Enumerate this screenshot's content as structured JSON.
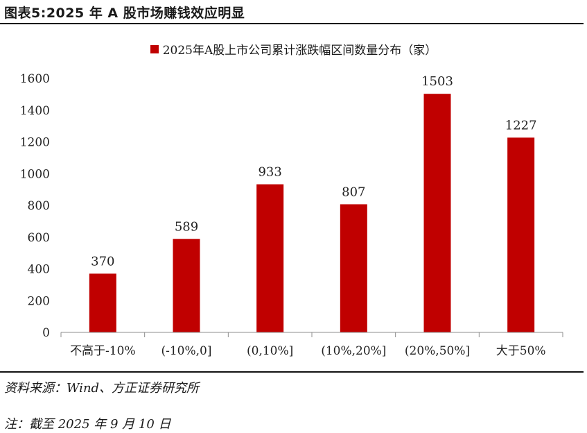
{
  "figure_title": "图表5:2025 年 A 股市场赚钱效应明显",
  "source": "资料来源：Wind、方正证券研究所",
  "note": "注：截至 2025 年 9 月 10 日",
  "chart_data": {
    "type": "bar",
    "legend_position": "top-center",
    "grid": false,
    "series": [
      {
        "name": "2025年A股上市公司累计涨跌幅区间数量分布（家）",
        "color": "#c00000",
        "values": [
          370,
          589,
          933,
          807,
          1503,
          1227
        ]
      }
    ],
    "categories": [
      "不高于-10%",
      "(-10%,0]",
      "(0,10%]",
      "(10%,20%]",
      "(20%,50%]",
      "大于50%"
    ],
    "ylim": [
      0,
      1600
    ],
    "yticks": [
      0,
      200,
      400,
      600,
      800,
      1000,
      1200,
      1400,
      1600
    ]
  }
}
